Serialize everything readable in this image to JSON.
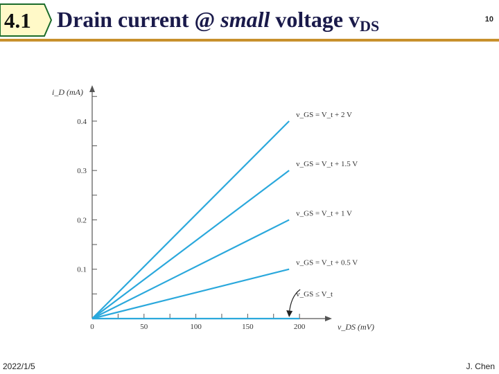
{
  "header": {
    "section_number": "4.1",
    "title_main": "Drain current @ ",
    "title_italic": "small",
    "title_rest": " voltage v",
    "title_sub": "DS",
    "slide_number": "10"
  },
  "footer": {
    "date": "2022/1/5",
    "author": "J. Chen"
  },
  "colors": {
    "accent": "#c8902c",
    "tag_fill": "#fff9c8",
    "line": "#2aa8dc",
    "axis": "#555555"
  },
  "chart_data": {
    "type": "line",
    "title": "",
    "xlabel": "v_DS (mV)",
    "ylabel": "i_D (mA)",
    "xlim": [
      0,
      230
    ],
    "ylim": [
      0,
      0.47
    ],
    "x_ticks": [
      0,
      50,
      100,
      150,
      200
    ],
    "y_ticks": [
      0.1,
      0.2,
      0.3,
      0.4
    ],
    "x_tick_labels": [
      "0",
      "50",
      "100",
      "150",
      "200"
    ],
    "y_tick_labels": [
      "0.1",
      "0.2",
      "0.3",
      "0.4"
    ],
    "series": [
      {
        "name": "vGS = Vt + 2 V",
        "label": "v_GS = V_t + 2 V",
        "x": [
          0,
          190
        ],
        "y": [
          0,
          0.4
        ]
      },
      {
        "name": "vGS = Vt + 1.5 V",
        "label": "v_GS = V_t + 1.5 V",
        "x": [
          0,
          190
        ],
        "y": [
          0,
          0.3
        ]
      },
      {
        "name": "vGS = Vt + 1 V",
        "label": "v_GS = V_t + 1 V",
        "x": [
          0,
          190
        ],
        "y": [
          0,
          0.2
        ]
      },
      {
        "name": "vGS = Vt + 0.5 V",
        "label": "v_GS = V_t + 0.5 V",
        "x": [
          0,
          190
        ],
        "y": [
          0,
          0.1
        ]
      },
      {
        "name": "vGS <= Vt",
        "label": "v_GS ≤ V_t",
        "x": [
          0,
          200
        ],
        "y": [
          0,
          0
        ]
      }
    ]
  }
}
